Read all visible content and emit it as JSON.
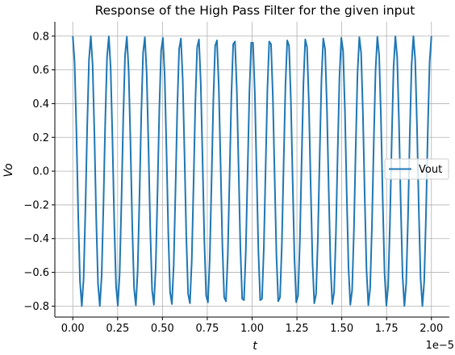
{
  "chart_data": {
    "type": "line",
    "title": "Response of the High Pass Filter for the given input",
    "xlabel": "t",
    "ylabel": "Vo",
    "x_offset_label": "1e−5",
    "xlim": [
      -1e-06,
      2.1e-05
    ],
    "ylim": [
      -0.865,
      0.885
    ],
    "xticks": [
      0,
      2.5e-06,
      5e-06,
      7.5e-06,
      1e-05,
      1.25e-05,
      1.5e-05,
      1.75e-05,
      2e-05
    ],
    "xtick_labels": [
      "0.00",
      "0.25",
      "0.50",
      "0.75",
      "1.00",
      "1.25",
      "1.50",
      "1.75",
      "2.00"
    ],
    "yticks": [
      -0.8,
      -0.6,
      -0.4,
      -0.2,
      0.0,
      0.2,
      0.4,
      0.6,
      0.8
    ],
    "ytick_labels": [
      "−0.8",
      "−0.6",
      "−0.4",
      "−0.2",
      "0.0",
      "0.2",
      "0.4",
      "0.6",
      "0.8"
    ],
    "grid": true,
    "legend_position": "center-right",
    "series": [
      {
        "name": "Vout",
        "color": "#1f77b4",
        "signal": {
          "form": "cosine",
          "amplitude": 0.8,
          "period": 1e-06,
          "t_start": 0,
          "t_end": 2e-05,
          "samples": 200
        }
      }
    ]
  }
}
